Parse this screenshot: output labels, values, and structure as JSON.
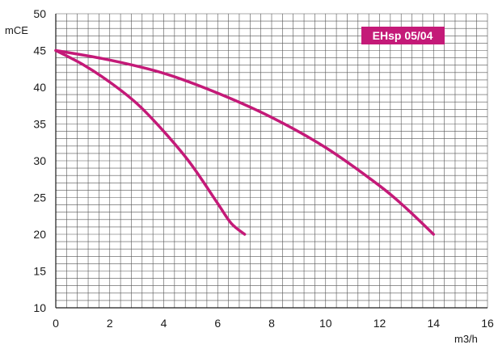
{
  "chart_data": {
    "type": "line",
    "title": "",
    "annotation": "EHsp 05/04",
    "xlabel": "m3/h",
    "ylabel": "mCE",
    "xlim": [
      0,
      16
    ],
    "ylim": [
      10,
      50
    ],
    "x_ticks": [
      0,
      2,
      4,
      6,
      8,
      10,
      12,
      14,
      16
    ],
    "y_ticks": [
      10,
      15,
      20,
      25,
      30,
      35,
      40,
      45,
      50
    ],
    "grid": true,
    "colors": {
      "curve": "#c41a78",
      "badge": "#c41a78",
      "grid": "#555555",
      "axis": "#1a1a1a"
    },
    "series": [
      {
        "x": [
          0,
          1,
          2,
          3,
          4,
          5,
          6,
          6.5,
          7
        ],
        "y": [
          45,
          43.1,
          40.7,
          37.8,
          34,
          29.6,
          24.2,
          21.5,
          20
        ]
      },
      {
        "x": [
          0,
          2,
          4,
          6,
          8,
          10,
          12,
          13,
          14
        ],
        "y": [
          45,
          43.7,
          41.9,
          39.2,
          35.9,
          31.8,
          26.6,
          23.5,
          20
        ]
      }
    ]
  }
}
